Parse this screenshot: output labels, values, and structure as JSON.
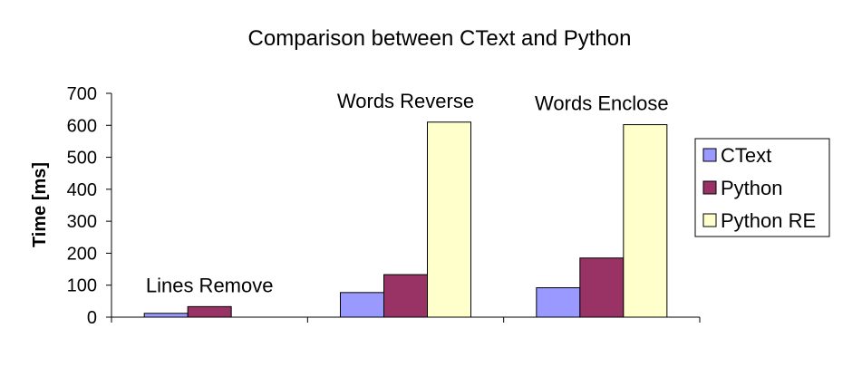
{
  "chart_data": {
    "type": "bar",
    "title": "Comparison between CText and Python",
    "xlabel": "",
    "ylabel": "Time [ms]",
    "ylim": [
      0,
      700
    ],
    "yticks": [
      0,
      100,
      200,
      300,
      400,
      500,
      600,
      700
    ],
    "categories": [
      "Lines Remove",
      "Words Reverse",
      "Words Enclose"
    ],
    "series": [
      {
        "name": "CText",
        "values": [
          12,
          77,
          92
        ],
        "color": "#9999ff"
      },
      {
        "name": "Python",
        "values": [
          33,
          133,
          185
        ],
        "color": "#993366"
      },
      {
        "name": "Python RE",
        "values": [
          0,
          610,
          602
        ],
        "color": "#ffffcc"
      }
    ],
    "grid": false,
    "legend_position": "right"
  }
}
